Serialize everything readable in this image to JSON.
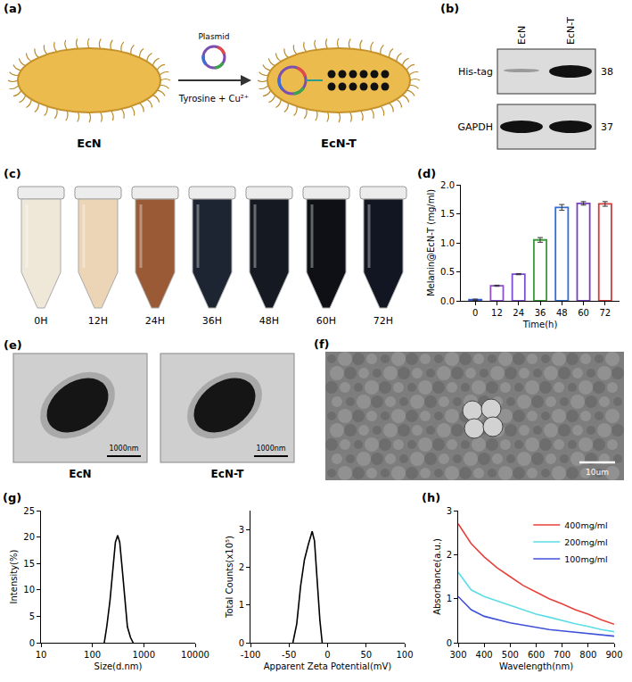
{
  "panels": {
    "a": {
      "letter": "(a)",
      "left_label": "EcN",
      "right_label": "EcN-T",
      "plasmid_label": "Plasmid",
      "arrow_label": "Tyrosine + Cu²⁺"
    },
    "b": {
      "letter": "(b)",
      "columns": [
        "EcN",
        "EcN-T"
      ],
      "rows": [
        {
          "label": "His-tag",
          "kda": 38
        },
        {
          "label": "GAPDH",
          "kda": 37
        }
      ]
    },
    "c": {
      "letter": "(c)",
      "tubes": [
        {
          "label": "0H",
          "color": "#efe7d8"
        },
        {
          "label": "12H",
          "color": "#ecd5b6"
        },
        {
          "label": "24H",
          "color": "#9a5a36"
        },
        {
          "label": "36H",
          "color": "#1e2532"
        },
        {
          "label": "48H",
          "color": "#151922"
        },
        {
          "label": "60H",
          "color": "#0e1015"
        },
        {
          "label": "72H",
          "color": "#121622"
        }
      ]
    },
    "e": {
      "letter": "(e)",
      "images": [
        {
          "label": "EcN",
          "scale_bar": "1000nm"
        },
        {
          "label": "EcN-T",
          "scale_bar": "1000nm"
        }
      ]
    },
    "f": {
      "letter": "(f)",
      "scale_bar": "10um"
    }
  },
  "chart_data": [
    {
      "panel": "(d)",
      "type": "bar",
      "x": [
        0,
        12,
        24,
        36,
        48,
        60,
        72
      ],
      "values": [
        0.02,
        0.26,
        0.46,
        1.05,
        1.61,
        1.68,
        1.67
      ],
      "errors": [
        0.01,
        0.01,
        0.01,
        0.04,
        0.05,
        0.03,
        0.04
      ],
      "colors": [
        "#3b5bd6",
        "#8a4fc9",
        "#7b4fd0",
        "#3a9d3a",
        "#2f6fd6",
        "#7a3fc0",
        "#d63a3a"
      ],
      "x_label": "Time(h)",
      "y_label": "Melanin@EcN-T (mg/ml)",
      "xlim": [
        -8,
        80
      ],
      "xticks": [
        0,
        12,
        24,
        36,
        48,
        60,
        72
      ],
      "ylim": [
        0,
        2
      ],
      "yticks": [
        {
          "value": 0,
          "label": "0.0"
        },
        0.5,
        {
          "value": 1,
          "label": "1.0"
        },
        1.5,
        {
          "value": 2,
          "label": "2.0"
        }
      ],
      "grid": false
    },
    {
      "panel": "(g)",
      "type": "line",
      "log": "x",
      "color": "#000000",
      "x": [
        170,
        190,
        220,
        250,
        280,
        310,
        340,
        380,
        430,
        480,
        550,
        620
      ],
      "values": [
        0,
        3,
        8,
        14,
        19,
        20.3,
        19,
        14,
        8,
        3,
        1,
        0
      ],
      "x_label": "Size(d.nm)",
      "y_label": "Intensity(%)",
      "xlim": [
        10,
        10000
      ],
      "xticks": [
        10,
        100,
        1000,
        10000
      ],
      "ylim": [
        0,
        25
      ],
      "yticks": [
        0,
        5,
        10,
        15,
        20,
        25
      ],
      "grid": false
    },
    {
      "type": "line",
      "color": "#000000",
      "x": [
        -45,
        -40,
        -35,
        -30,
        -25,
        -22,
        -20,
        -17,
        -14,
        -10,
        -7
      ],
      "values": [
        0,
        0.5,
        1.5,
        2.2,
        2.6,
        2.8,
        2.95,
        2.7,
        1.8,
        0.6,
        0
      ],
      "x_label": "Apparent Zeta Potential(mV)",
      "y_label": "Total Counts(x10⁵)",
      "xlim": [
        -100,
        100
      ],
      "xticks": [
        -100,
        -50,
        0,
        50,
        100
      ],
      "ylim": [
        0,
        3.5
      ],
      "yticks": [
        0,
        1,
        2,
        3
      ],
      "grid": false
    },
    {
      "panel": "(h)",
      "type": "line",
      "legend": "upper right",
      "x": [
        300,
        350,
        400,
        450,
        500,
        550,
        600,
        650,
        700,
        750,
        800,
        850,
        900
      ],
      "series": [
        {
          "name": "400mg/ml",
          "color": "#e8413c",
          "values": [
            2.7,
            2.25,
            1.95,
            1.7,
            1.5,
            1.3,
            1.15,
            1.0,
            0.88,
            0.75,
            0.65,
            0.52,
            0.42
          ]
        },
        {
          "name": "200mg/ml",
          "color": "#5cdde6",
          "values": [
            1.6,
            1.2,
            1.05,
            0.95,
            0.85,
            0.75,
            0.65,
            0.58,
            0.5,
            0.43,
            0.37,
            0.3,
            0.25
          ]
        },
        {
          "name": "100mg/ml",
          "color": "#3f51d8",
          "values": [
            1.05,
            0.75,
            0.6,
            0.52,
            0.45,
            0.4,
            0.35,
            0.3,
            0.27,
            0.24,
            0.21,
            0.18,
            0.15
          ]
        }
      ],
      "x_label": "Wavelength(nm)",
      "y_label": "Absorbance(a.u.)",
      "xlim": [
        300,
        900
      ],
      "xticks": [
        300,
        400,
        500,
        600,
        700,
        800,
        900
      ],
      "ylim": [
        0,
        3
      ],
      "yticks": [
        0,
        1,
        2,
        3
      ],
      "grid": false
    }
  ]
}
